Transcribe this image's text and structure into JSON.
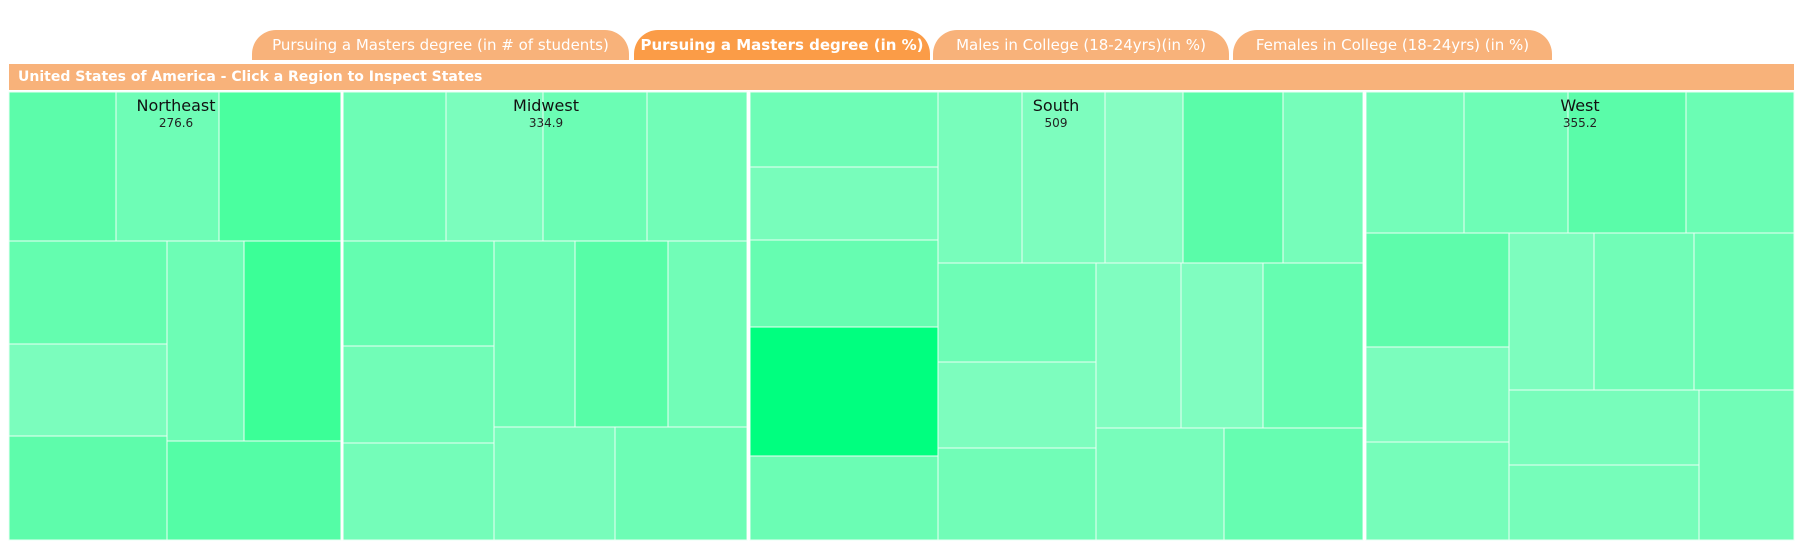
{
  "tabs": [
    {
      "label": "Pursuing a Masters degree (in # of students)",
      "active": false
    },
    {
      "label": "Pursuing a Masters degree (in %)",
      "active": true
    },
    {
      "label": "Males in College (18-24yrs)(in %)",
      "active": false
    },
    {
      "label": "Females in College (18-24yrs) (in %)",
      "active": false
    }
  ],
  "header": {
    "title": "United States of America - Click a Region to Inspect States"
  },
  "chart_data": {
    "type": "treemap",
    "regions": [
      {
        "name": "Northeast",
        "value": "276.6"
      },
      {
        "name": "Midwest",
        "value": "334.9"
      },
      {
        "name": "South",
        "value": "509"
      },
      {
        "name": "West",
        "value": "355.2"
      }
    ]
  }
}
